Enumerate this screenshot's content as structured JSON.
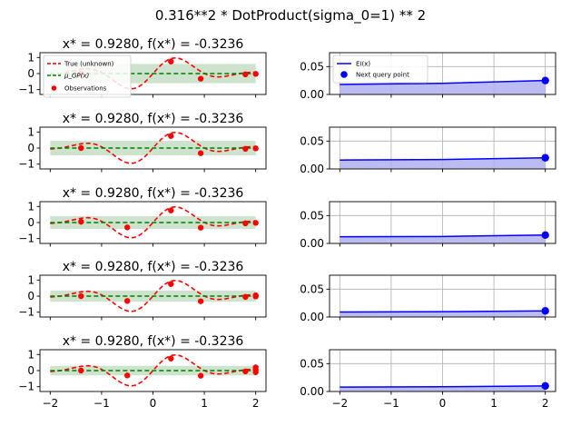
{
  "figure": {
    "suptitle": "0.316**2 * DotProduct(sigma_0=1) ** 2"
  },
  "legend_left": {
    "true_label": "True (unknown)",
    "mu_label": "μ_GP(x)",
    "obs_label": "Observations"
  },
  "legend_right": {
    "ei_label": "EI(x)",
    "next_label": "Next query point"
  },
  "colors": {
    "true_fn": "#ff0000",
    "gp_mean": "#008000",
    "gp_band": "#c8e0c8",
    "obs": "#ff0000",
    "ei_line": "#0000ff",
    "ei_fill": "#b0b0f0",
    "next_point": "#0000ff",
    "grid": "#b0b0b0"
  },
  "chart_data": [
    {
      "type": "line",
      "panel": "left",
      "row": 1,
      "title": "x* = 0.9280, f(x*) = -0.3236",
      "xlim": [
        -2.2,
        2.2
      ],
      "ylim": [
        -1.3,
        1.3
      ],
      "xticks": [
        -2,
        -1,
        0,
        1,
        2
      ],
      "yticks": [
        -1,
        0,
        1
      ],
      "xtick_labels_shown": false,
      "grid": false,
      "legend": "upper-left",
      "gp_band": [
        -0.6,
        0.6
      ],
      "gp_mean": 0.0,
      "observations": [
        [
          -1.4,
          0.0
        ],
        [
          0.35,
          0.75
        ],
        [
          0.93,
          -0.32
        ],
        [
          1.8,
          -0.05
        ],
        [
          2.0,
          -0.02
        ]
      ]
    },
    {
      "type": "area",
      "panel": "right",
      "row": 1,
      "xlim": [
        -2.2,
        2.2
      ],
      "ylim": [
        0,
        0.075
      ],
      "xticks": [
        -2,
        -1,
        0,
        1,
        2
      ],
      "yticks": [
        0.0,
        0.05
      ],
      "xtick_labels_shown": false,
      "grid": true,
      "legend": "upper-left",
      "ei": {
        "x": [
          -2,
          0,
          2
        ],
        "y": [
          0.018,
          0.02,
          0.025
        ]
      },
      "next_point": [
        2.0,
        0.025
      ]
    },
    {
      "type": "line",
      "panel": "left",
      "row": 2,
      "title": "x* = 0.9280, f(x*) = -0.3236",
      "xlim": [
        -2.2,
        2.2
      ],
      "ylim": [
        -1.3,
        1.3
      ],
      "xticks": [
        -2,
        -1,
        0,
        1,
        2
      ],
      "yticks": [
        -1,
        0,
        1
      ],
      "xtick_labels_shown": false,
      "grid": false,
      "gp_band": [
        -0.45,
        0.45
      ],
      "gp_mean": 0.0,
      "observations": [
        [
          -1.4,
          0.0
        ],
        [
          0.35,
          0.75
        ],
        [
          0.93,
          -0.32
        ],
        [
          1.8,
          -0.05
        ],
        [
          2.0,
          -0.02
        ]
      ]
    },
    {
      "type": "area",
      "panel": "right",
      "row": 2,
      "xlim": [
        -2.2,
        2.2
      ],
      "ylim": [
        0,
        0.075
      ],
      "xticks": [
        -2,
        -1,
        0,
        1,
        2
      ],
      "yticks": [
        0.0,
        0.05
      ],
      "xtick_labels_shown": false,
      "grid": true,
      "ei": {
        "x": [
          -2,
          0,
          2
        ],
        "y": [
          0.016,
          0.017,
          0.02
        ]
      },
      "next_point": [
        2.0,
        0.02
      ]
    },
    {
      "type": "line",
      "panel": "left",
      "row": 3,
      "title": "x* = 0.9280, f(x*) = -0.3236",
      "xlim": [
        -2.2,
        2.2
      ],
      "ylim": [
        -1.3,
        1.3
      ],
      "xticks": [
        -2,
        -1,
        0,
        1,
        2
      ],
      "yticks": [
        -1,
        0,
        1
      ],
      "xtick_labels_shown": false,
      "grid": false,
      "gp_band": [
        -0.4,
        0.4
      ],
      "gp_mean": 0.0,
      "observations": [
        [
          -1.4,
          0.05
        ],
        [
          -0.5,
          -0.3
        ],
        [
          0.35,
          0.75
        ],
        [
          0.93,
          -0.32
        ],
        [
          1.8,
          -0.05
        ],
        [
          2.0,
          -0.02
        ]
      ]
    },
    {
      "type": "area",
      "panel": "right",
      "row": 3,
      "xlim": [
        -2.2,
        2.2
      ],
      "ylim": [
        0,
        0.075
      ],
      "xticks": [
        -2,
        -1,
        0,
        1,
        2
      ],
      "yticks": [
        0.0,
        0.05
      ],
      "xtick_labels_shown": false,
      "grid": true,
      "ei": {
        "x": [
          -2,
          0,
          2
        ],
        "y": [
          0.012,
          0.0125,
          0.015
        ]
      },
      "next_point": [
        2.0,
        0.015
      ]
    },
    {
      "type": "line",
      "panel": "left",
      "row": 4,
      "title": "x* = 0.9280, f(x*) = -0.3236",
      "xlim": [
        -2.2,
        2.2
      ],
      "ylim": [
        -1.3,
        1.3
      ],
      "xticks": [
        -2,
        -1,
        0,
        1,
        2
      ],
      "yticks": [
        -1,
        0,
        1
      ],
      "xtick_labels_shown": false,
      "grid": false,
      "gp_band": [
        -0.35,
        0.35
      ],
      "gp_mean": 0.0,
      "observations": [
        [
          -1.4,
          0.0
        ],
        [
          -0.5,
          -0.3
        ],
        [
          0.35,
          0.75
        ],
        [
          0.93,
          -0.32
        ],
        [
          1.8,
          -0.05
        ],
        [
          2.0,
          0.05
        ],
        [
          2.0,
          -0.02
        ]
      ]
    },
    {
      "type": "area",
      "panel": "right",
      "row": 4,
      "xlim": [
        -2.2,
        2.2
      ],
      "ylim": [
        0,
        0.075
      ],
      "xticks": [
        -2,
        -1,
        0,
        1,
        2
      ],
      "yticks": [
        0.0,
        0.05
      ],
      "xtick_labels_shown": false,
      "grid": true,
      "ei": {
        "x": [
          -2,
          0,
          2
        ],
        "y": [
          0.009,
          0.0095,
          0.011
        ]
      },
      "next_point": [
        2.0,
        0.011
      ]
    },
    {
      "type": "line",
      "panel": "left",
      "row": 5,
      "title": "x* = 0.9280, f(x*) = -0.3236",
      "xlim": [
        -2.2,
        2.2
      ],
      "ylim": [
        -1.3,
        1.3
      ],
      "xticks": [
        -2,
        -1,
        0,
        1,
        2
      ],
      "yticks": [
        -1,
        0,
        1
      ],
      "xtick_labels_shown": true,
      "grid": false,
      "gp_band": [
        -0.3,
        0.3
      ],
      "gp_mean": 0.0,
      "observations": [
        [
          -1.4,
          0.0
        ],
        [
          -0.5,
          -0.3
        ],
        [
          0.35,
          0.75
        ],
        [
          0.93,
          -0.32
        ],
        [
          1.8,
          -0.05
        ],
        [
          2.0,
          0.2
        ],
        [
          2.0,
          0.05
        ],
        [
          2.0,
          -0.1
        ]
      ]
    },
    {
      "type": "area",
      "panel": "right",
      "row": 5,
      "xlim": [
        -2.2,
        2.2
      ],
      "ylim": [
        0,
        0.075
      ],
      "xticks": [
        -2,
        -1,
        0,
        1,
        2
      ],
      "yticks": [
        0.0,
        0.05
      ],
      "xtick_labels_shown": true,
      "grid": true,
      "ei": {
        "x": [
          -2,
          0,
          2
        ],
        "y": [
          0.008,
          0.0085,
          0.01
        ]
      },
      "next_point": [
        2.0,
        0.01
      ]
    }
  ]
}
